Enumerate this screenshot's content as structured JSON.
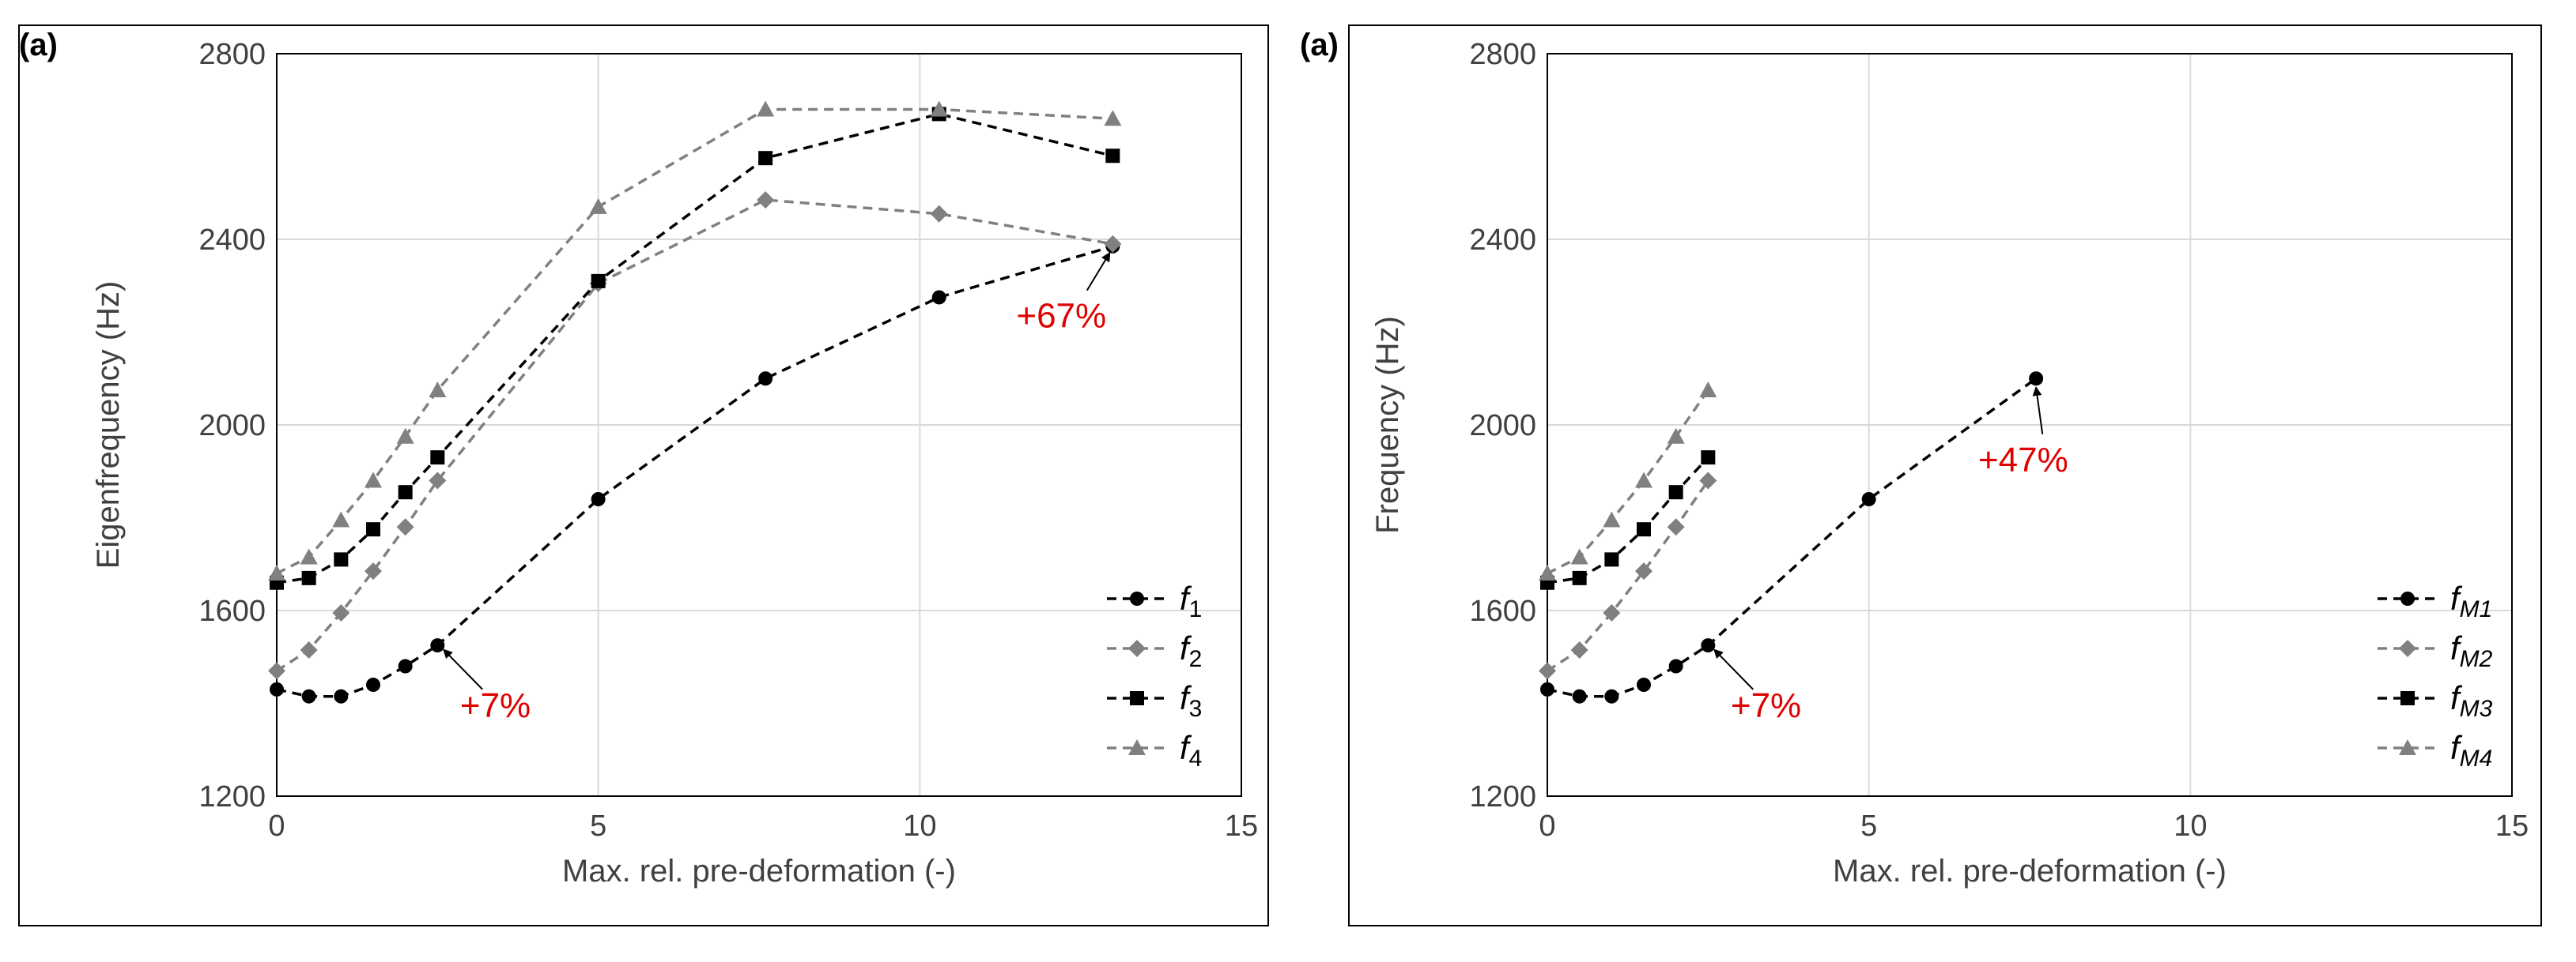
{
  "colors": {
    "black": "#000000",
    "gray": "#808080",
    "annotation": "#e00000",
    "grid": "#d9d9d9",
    "frame": "#000000"
  },
  "chart_data": [
    {
      "type": "line",
      "panel_label": "(a)",
      "xlabel": "Max. rel. pre-deformation (-)",
      "ylabel": "Eigenfrequency (Hz)",
      "xlim": [
        0,
        15
      ],
      "ylim": [
        1200,
        2800
      ],
      "xticks": [
        0,
        5,
        10,
        15
      ],
      "yticks": [
        1200,
        1600,
        2000,
        2400,
        2800
      ],
      "grid": true,
      "legend_position": "bottom-right",
      "series": [
        {
          "name": "f",
          "sub": "1",
          "color": "#000000",
          "marker": "circle",
          "x": [
            0,
            0.5,
            1,
            1.5,
            2,
            2.5,
            5,
            7.6,
            10.3,
            13
          ],
          "y": [
            1430,
            1415,
            1415,
            1440,
            1480,
            1525,
            1840,
            2100,
            2275,
            2385
          ]
        },
        {
          "name": "f",
          "sub": "2",
          "color": "#808080",
          "marker": "diamond",
          "x": [
            0,
            0.5,
            1,
            1.5,
            2,
            2.5,
            5,
            7.6,
            10.3,
            13
          ],
          "y": [
            1470,
            1515,
            1595,
            1685,
            1780,
            1880,
            2305,
            2485,
            2455,
            2390
          ]
        },
        {
          "name": "f",
          "sub": "3",
          "color": "#000000",
          "marker": "square",
          "x": [
            0,
            0.5,
            1,
            1.5,
            2,
            2.5,
            5,
            7.6,
            10.3,
            13
          ],
          "y": [
            1660,
            1670,
            1710,
            1775,
            1855,
            1930,
            2310,
            2575,
            2670,
            2580
          ]
        },
        {
          "name": "f",
          "sub": "4",
          "color": "#808080",
          "marker": "triangle",
          "x": [
            0,
            0.5,
            1,
            1.5,
            2,
            2.5,
            5,
            7.6,
            10.3,
            13
          ],
          "y": [
            1680,
            1715,
            1795,
            1880,
            1975,
            2075,
            2470,
            2680,
            2680,
            2660
          ]
        }
      ],
      "annotations": [
        {
          "text": "+7%",
          "x": 3.4,
          "y": 1370,
          "arrow_from": [
            3.2,
            1430
          ],
          "arrow_to": [
            2.6,
            1515
          ]
        },
        {
          "text": "+67%",
          "x": 12.2,
          "y": 2210,
          "arrow_from": [
            12.6,
            2290
          ],
          "arrow_to": [
            12.95,
            2370
          ]
        }
      ]
    },
    {
      "type": "line",
      "panel_label": "(a)",
      "xlabel": "Max. rel. pre-deformation (-)",
      "ylabel": "Frequency (Hz)",
      "xlim": [
        0,
        15
      ],
      "ylim": [
        1200,
        2800
      ],
      "xticks": [
        0,
        5,
        10,
        15
      ],
      "yticks": [
        1200,
        1600,
        2000,
        2400,
        2800
      ],
      "grid": true,
      "legend_position": "bottom-right",
      "series": [
        {
          "name": "f",
          "sub": "M1",
          "color": "#000000",
          "marker": "circle",
          "x": [
            0,
            0.5,
            1,
            1.5,
            2,
            2.5,
            5,
            7.6
          ],
          "y": [
            1430,
            1415,
            1415,
            1440,
            1480,
            1525,
            1840,
            2100
          ]
        },
        {
          "name": "f",
          "sub": "M2",
          "color": "#808080",
          "marker": "diamond",
          "x": [
            0,
            0.5,
            1,
            1.5,
            2,
            2.5
          ],
          "y": [
            1470,
            1515,
            1595,
            1685,
            1780,
            1880
          ]
        },
        {
          "name": "f",
          "sub": "M3",
          "color": "#000000",
          "marker": "square",
          "x": [
            0,
            0.5,
            1,
            1.5,
            2,
            2.5
          ],
          "y": [
            1660,
            1670,
            1710,
            1775,
            1855,
            1930
          ]
        },
        {
          "name": "f",
          "sub": "M4",
          "color": "#808080",
          "marker": "triangle",
          "x": [
            0,
            0.5,
            1,
            1.5,
            2,
            2.5
          ],
          "y": [
            1680,
            1715,
            1795,
            1880,
            1975,
            2075
          ]
        }
      ],
      "annotations": [
        {
          "text": "+7%",
          "x": 3.4,
          "y": 1370,
          "arrow_from": [
            3.2,
            1430
          ],
          "arrow_to": [
            2.6,
            1515
          ]
        },
        {
          "text": "+47%",
          "x": 7.4,
          "y": 1900,
          "arrow_from": [
            7.7,
            1980
          ],
          "arrow_to": [
            7.6,
            2080
          ]
        }
      ]
    }
  ]
}
